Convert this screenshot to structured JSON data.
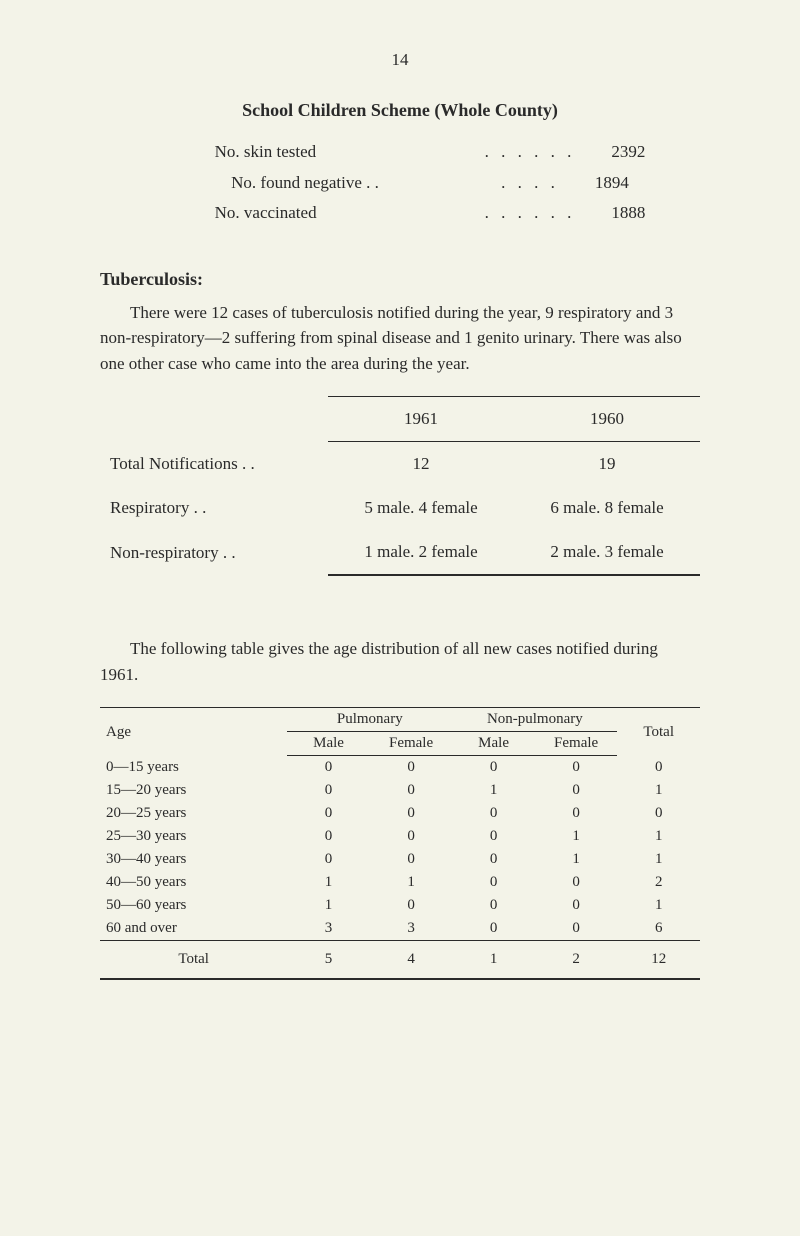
{
  "page_number": "14",
  "scheme_title": "School Children Scheme (Whole County)",
  "stats": [
    {
      "label": "No. skin tested",
      "value": "2392"
    },
    {
      "label": "No. found negative . .",
      "value": "1894"
    },
    {
      "label": "No. vaccinated",
      "value": "1888"
    }
  ],
  "tb_title": "Tuberculosis:",
  "tb_paragraph": "There were 12 cases of tuberculosis notified during the year, 9 respiratory and 3 non-respiratory—2 suffering from spinal disease and 1 genito urinary. There was also one other case who came into the area during the year.",
  "tb_table": {
    "years": [
      "1961",
      "1960"
    ],
    "rows": [
      {
        "label": "Total Notifications    . .",
        "y1961": "12",
        "y1960": "19"
      },
      {
        "label": "Respiratory                . .",
        "y1961": "5 male.  4 female",
        "y1960": "6 male. 8 female"
      },
      {
        "label": "Non-respiratory          . .",
        "y1961": "1 male.  2 female",
        "y1960": "2 male. 3 female"
      }
    ]
  },
  "age_paragraph": "The following table gives the age distribution of all new cases notified during 1961.",
  "age_table": {
    "col_age": "Age",
    "col_pulmonary": "Pulmonary",
    "col_nonpulmonary": "Non-pulmonary",
    "col_total": "Total",
    "col_male": "Male",
    "col_female": "Female",
    "rows": [
      {
        "age": "0—15 years",
        "pm": "0",
        "pf": "0",
        "nm": "0",
        "nf": "0",
        "total": "0"
      },
      {
        "age": "15—20 years",
        "pm": "0",
        "pf": "0",
        "nm": "1",
        "nf": "0",
        "total": "1"
      },
      {
        "age": "20—25 years",
        "pm": "0",
        "pf": "0",
        "nm": "0",
        "nf": "0",
        "total": "0"
      },
      {
        "age": "25—30 years",
        "pm": "0",
        "pf": "0",
        "nm": "0",
        "nf": "1",
        "total": "1"
      },
      {
        "age": "30—40 years",
        "pm": "0",
        "pf": "0",
        "nm": "0",
        "nf": "1",
        "total": "1"
      },
      {
        "age": "40—50 years",
        "pm": "1",
        "pf": "1",
        "nm": "0",
        "nf": "0",
        "total": "2"
      },
      {
        "age": "50—60 years",
        "pm": "1",
        "pf": "0",
        "nm": "0",
        "nf": "0",
        "total": "1"
      },
      {
        "age": "60 and over",
        "pm": "3",
        "pf": "3",
        "nm": "0",
        "nf": "0",
        "total": "6"
      }
    ],
    "total_row": {
      "label": "Total",
      "pm": "5",
      "pf": "4",
      "nm": "1",
      "nf": "2",
      "total": "12"
    }
  }
}
